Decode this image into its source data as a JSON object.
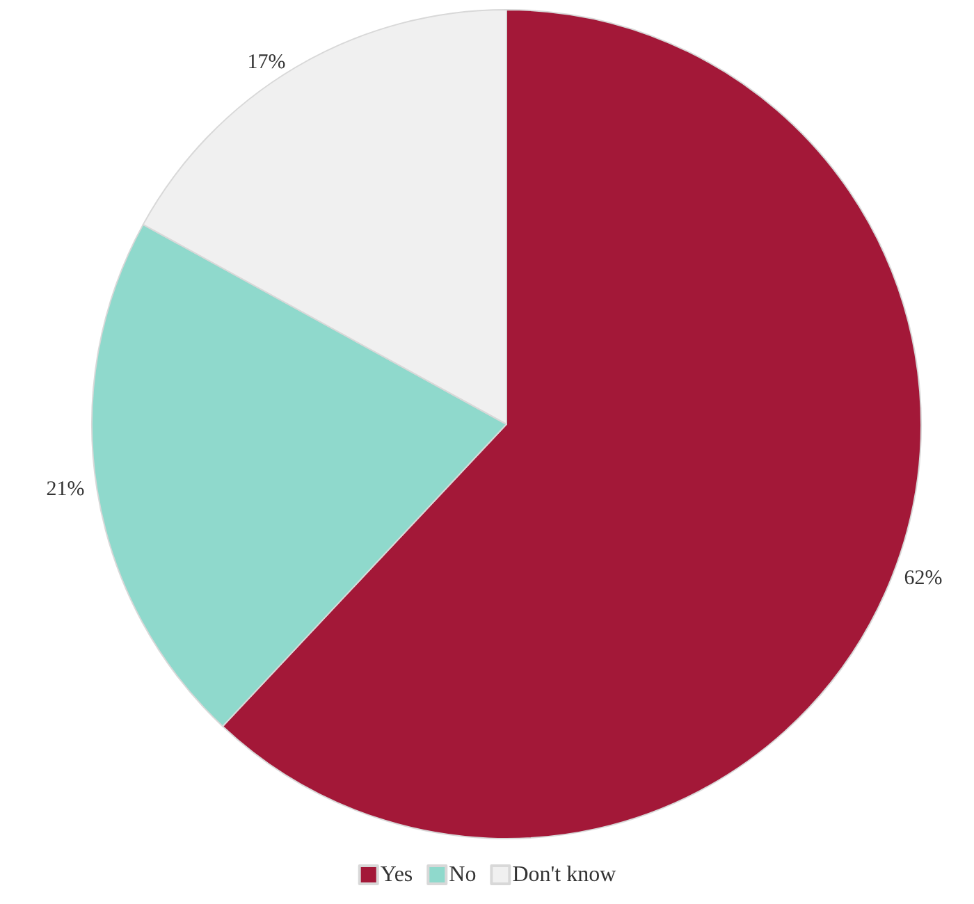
{
  "chart_data": {
    "type": "pie",
    "categories": [
      "Yes",
      "No",
      "Don't know"
    ],
    "values": [
      62,
      21,
      17
    ],
    "colors": [
      "#a31838",
      "#8fd9cc",
      "#f0f0f0"
    ],
    "value_labels": [
      "62%",
      "21%",
      "17%"
    ],
    "legend": "bottom"
  }
}
